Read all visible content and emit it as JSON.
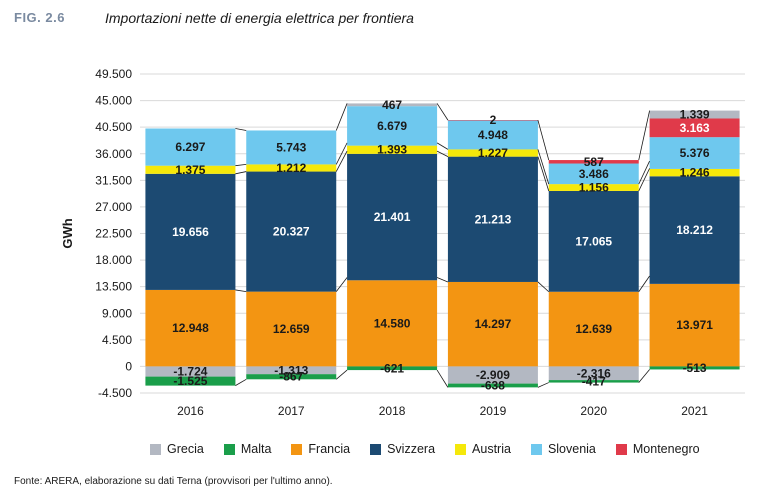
{
  "figure": {
    "label": "FIG. 2.6",
    "title": "Importazioni nette di energia elettrica per frontiera",
    "source": "Fonte: ARERA, elaborazione su dati Terna (provvisori per l'ultimo anno)."
  },
  "chart_data": {
    "type": "bar",
    "stacked": true,
    "ylabel": "GWh",
    "xlabel": "",
    "ylim": [
      -4500,
      49500
    ],
    "yticks": [
      "49.500",
      "45.000",
      "40.500",
      "36.000",
      "31.500",
      "27.000",
      "22.500",
      "18.000",
      "13.500",
      "9.000",
      "4.500",
      "0",
      "-4.500"
    ],
    "ytick_values": [
      49500,
      45000,
      40500,
      36000,
      31500,
      27000,
      22500,
      18000,
      13500,
      9000,
      4500,
      0,
      -4500
    ],
    "categories": [
      "2016",
      "2017",
      "2018",
      "2019",
      "2020",
      "2021"
    ],
    "series": [
      {
        "name": "Grecia",
        "color": "#b3b8c2",
        "values": [
          -1724,
          -1313,
          467,
          -2909,
          -2316,
          1339
        ],
        "labels": [
          "-1.724",
          "-1.313",
          "467",
          "-2.909",
          "-2.316",
          "1.339"
        ]
      },
      {
        "name": "Malta",
        "color": "#1a9e4a",
        "values": [
          -1525,
          -867,
          -621,
          -638,
          -417,
          -513
        ],
        "labels": [
          "-1.525",
          "-867",
          "-621",
          "-638",
          "-417",
          "-513"
        ]
      },
      {
        "name": "Francia",
        "color": "#f39512",
        "values": [
          12948,
          12659,
          14580,
          14297,
          12639,
          13971
        ],
        "labels": [
          "12.948",
          "12.659",
          "14.580",
          "14.297",
          "12.639",
          "13.971"
        ]
      },
      {
        "name": "Svizzera",
        "color": "#1c4a72",
        "values": [
          19656,
          20327,
          21401,
          21213,
          17065,
          18212
        ],
        "labels": [
          "19.656",
          "20.327",
          "21.401",
          "21.213",
          "17.065",
          "18.212"
        ]
      },
      {
        "name": "Austria",
        "color": "#f5e80a",
        "values": [
          1375,
          1212,
          1393,
          1227,
          1156,
          1246
        ],
        "labels": [
          "1.375",
          "1.212",
          "1.393",
          "1.227",
          "1.156",
          "1.246"
        ]
      },
      {
        "name": "Slovenia",
        "color": "#6ec8ee",
        "values": [
          6297,
          5743,
          6679,
          4948,
          3486,
          5376
        ],
        "labels": [
          "6.297",
          "5.743",
          "6.679",
          "4.948",
          "3.486",
          "5.376"
        ]
      },
      {
        "name": "Montenegro",
        "color": "#e03a4a",
        "values": [
          0,
          0,
          0,
          2,
          587,
          3163
        ],
        "labels": [
          "",
          "",
          "",
          "2",
          "587",
          "3.163"
        ]
      }
    ],
    "grid": true,
    "legend_position": "bottom"
  }
}
